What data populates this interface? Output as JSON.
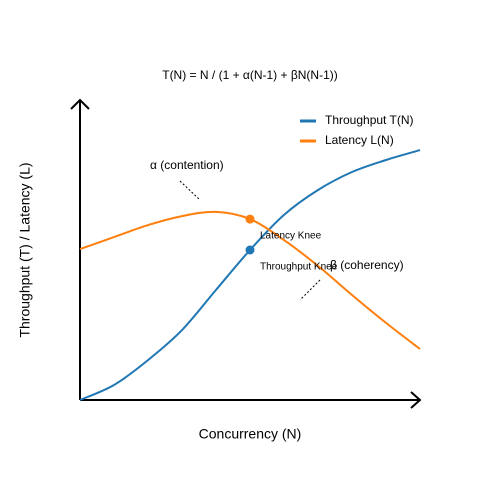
{
  "chart_data": {
    "type": "line",
    "title": "T(N) = N / (1 + α(N-1) + βN(N-1))",
    "x_label": "Concurrency (N)",
    "y_label": "Throughput (T) / Latency (L)",
    "x": [
      0,
      1,
      2,
      3,
      4,
      5,
      6,
      7,
      8,
      9,
      10
    ],
    "xlim": [
      0,
      10
    ],
    "ylim": [
      0,
      10
    ],
    "legend": "upper right",
    "series": [
      {
        "name": "Throughput T(N)",
        "color": "#1f77b4",
        "values": [
          0,
          0.5,
          1.33,
          2.33,
          3.67,
          5,
          6.17,
          7,
          7.6,
          8,
          8.33
        ]
      },
      {
        "name": "Latency L(N)",
        "color": "#ff7f0e",
        "values": [
          5.03,
          5.43,
          5.83,
          6.13,
          6.27,
          6.03,
          5.33,
          4.47,
          3.5,
          2.57,
          1.7
        ]
      }
    ],
    "points": [
      {
        "text": "Latency Knee",
        "x": 5,
        "y": 6.03,
        "color": "#ff7f0e"
      },
      {
        "text": "Throughput Knee",
        "x": 5,
        "y": 5,
        "color": "#1f77b4"
      }
    ],
    "annotations": [
      "α (contention)",
      "β (coherency)"
    ]
  }
}
